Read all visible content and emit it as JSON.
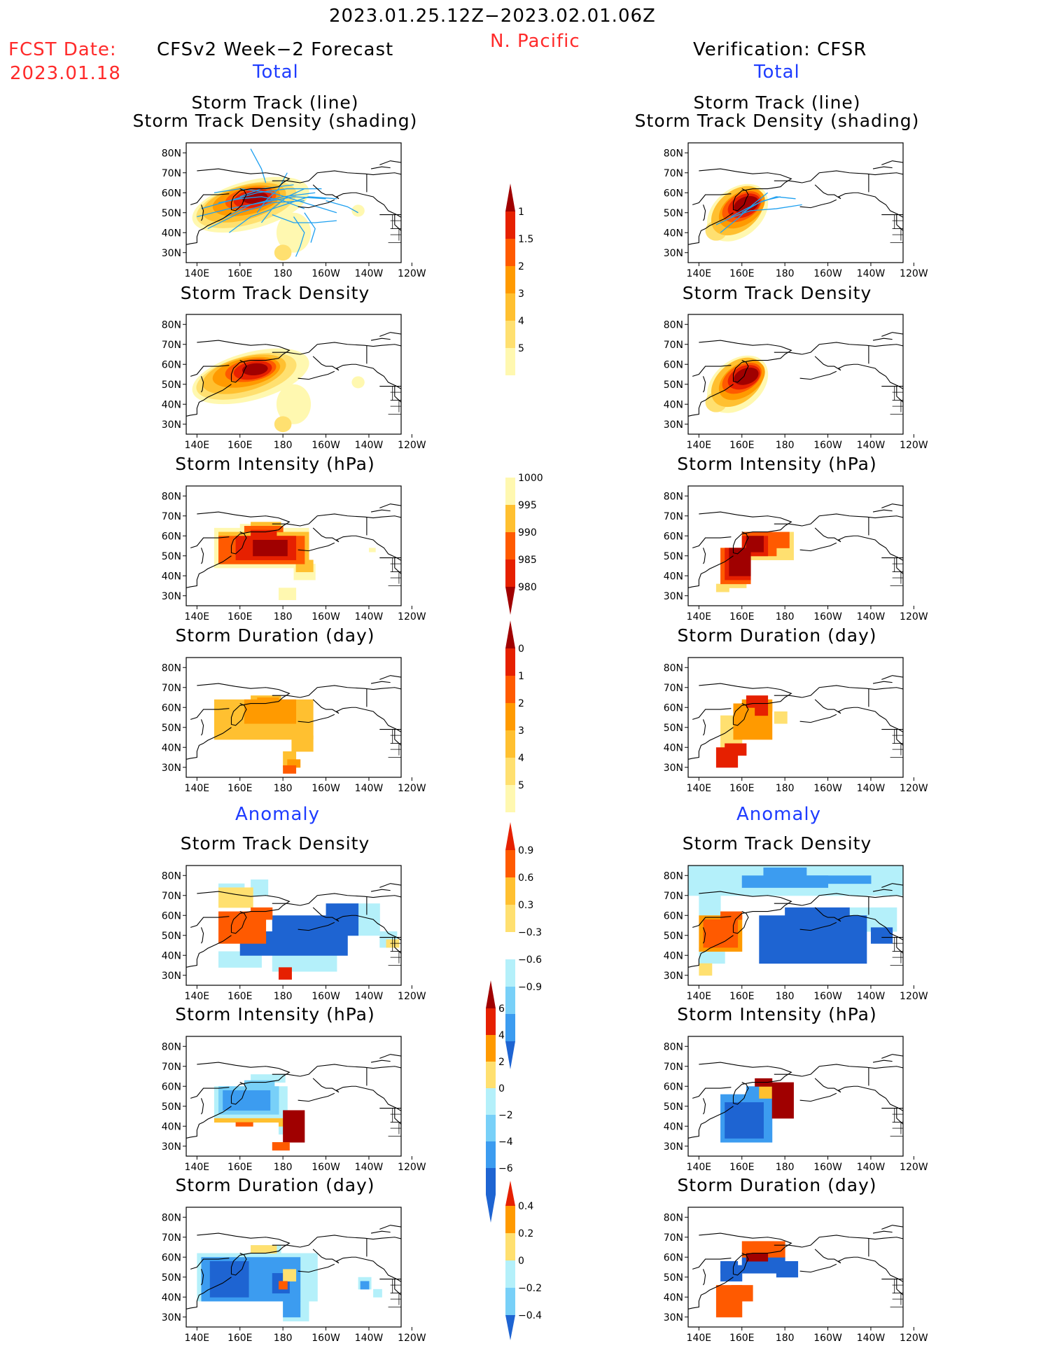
{
  "header": {
    "period": "2023.01.25.12Z−2023.02.01.06Z",
    "region": "N. Pacific",
    "fcst_label": "FCST Date:",
    "fcst_date": "2023.01.18",
    "left_title": "CFSv2 Week−2 Forecast",
    "right_title": "Verification: CFSR",
    "total_label": "Total",
    "anomaly_label": "Anomaly"
  },
  "panel_titles": {
    "track_line": "Storm Track (line)",
    "track_shading": "Storm Track Density (shading)",
    "density": "Storm Track Density",
    "intensity": "Storm Intensity (hPa)",
    "duration": "Storm Duration (day)"
  },
  "map_axes": {
    "lat_labels": [
      "80N",
      "70N",
      "60N",
      "50N",
      "40N",
      "30N"
    ],
    "lon_labels": [
      "140E",
      "160E",
      "180",
      "160W",
      "140W",
      "120W"
    ]
  },
  "colorbars": {
    "density_total": [
      "1",
      "1.5",
      "2",
      "3",
      "4",
      "5"
    ],
    "intensity_total": [
      "1000",
      "995",
      "990",
      "985",
      "980"
    ],
    "duration_total": [
      "0",
      "1",
      "2",
      "3",
      "4",
      "5"
    ],
    "density_anom": [
      "0.9",
      "0.6",
      "0.3",
      "−0.3",
      "−0.6",
      "−0.9"
    ],
    "intensity_anom": [
      "6",
      "4",
      "2",
      "0",
      "−2",
      "−4",
      "−6"
    ],
    "duration_anom": [
      "0.4",
      "0.2",
      "0",
      "−0.2",
      "−0.4"
    ]
  },
  "colors": {
    "warm": [
      "#fff8b0",
      "#ffe070",
      "#ffc030",
      "#ff9a00",
      "#ff5a00",
      "#e62000",
      "#a00000"
    ],
    "cool": [
      "#b4f0fa",
      "#78d0f8",
      "#3c9cf0",
      "#1e64d2"
    ],
    "track_line": "#1ea0f0",
    "map_line": "#000000"
  }
}
